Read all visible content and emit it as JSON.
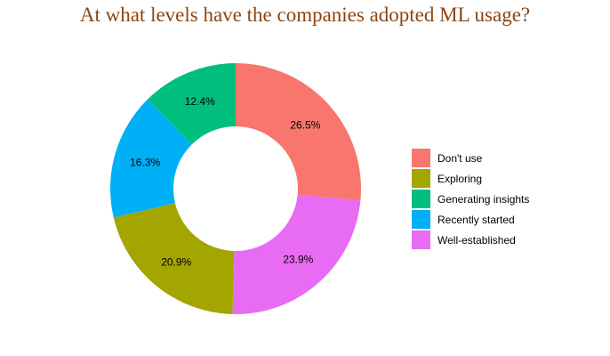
{
  "chart_data": {
    "type": "pie",
    "donut": true,
    "title": "At what levels have the companies adopted ML usage?",
    "categories": [
      "Don't use",
      "Exploring",
      "Generating insights",
      "Recently started",
      "Well-established"
    ],
    "values": [
      26.5,
      20.9,
      12.4,
      16.3,
      23.9
    ],
    "labels": [
      "26.5%",
      "20.9%",
      "12.4%",
      "16.3%",
      "23.9%"
    ],
    "drawing_order": [
      "Don't use",
      "Well-established",
      "Exploring",
      "Recently started",
      "Generating insights"
    ],
    "colors": {
      "Don't use": "#F8766D",
      "Exploring": "#A3A500",
      "Generating insights": "#00BF7D",
      "Recently started": "#00B0F6",
      "Well-established": "#E76BF3"
    },
    "legend_position": "right",
    "grid": false
  }
}
